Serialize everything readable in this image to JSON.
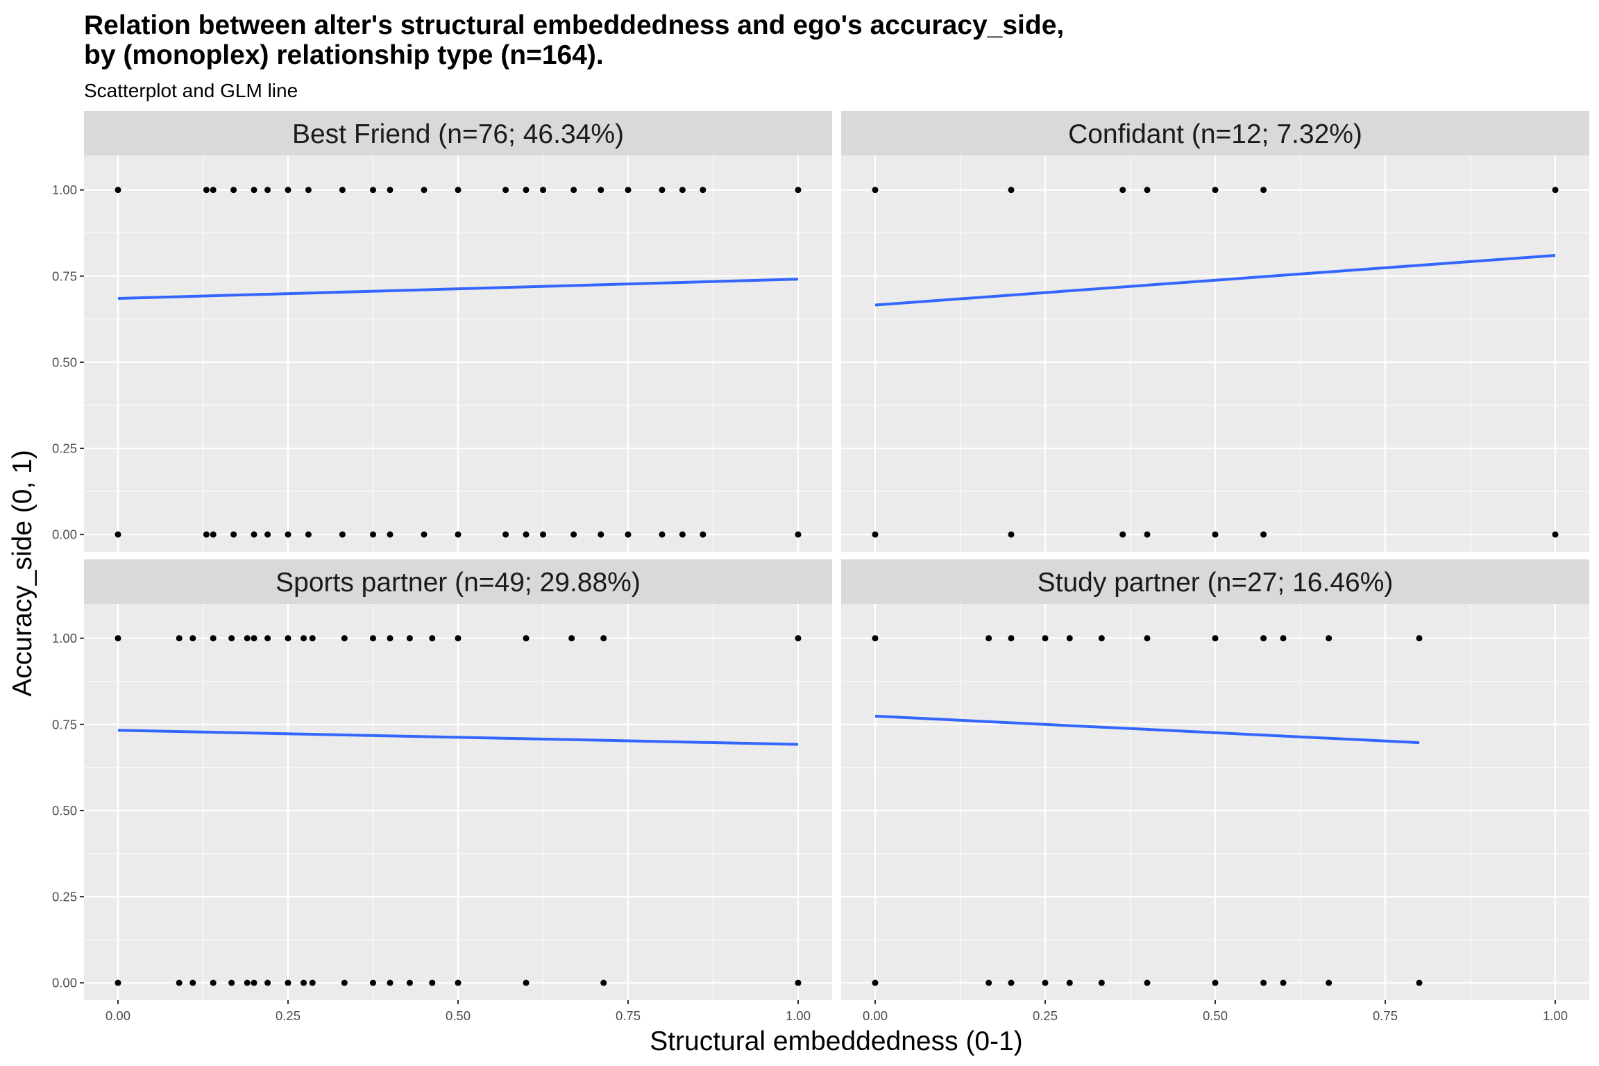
{
  "chart_data": {
    "type": "scatter",
    "title_lines": [
      "Relation between alter's structural embeddedness and ego's accuracy_side,",
      "by (monoplex) relationship type (n=164)."
    ],
    "subtitle": "Scatterplot and GLM line",
    "xlabel": "Structural embeddedness (0-1)",
    "ylabel": "Accuracy_side (0, 1)",
    "xlim": [
      -0.05,
      1.05
    ],
    "ylim": [
      -0.05,
      1.1
    ],
    "x_ticks": [
      0,
      0.25,
      0.5,
      0.75,
      1
    ],
    "x_tick_labels": [
      "0.00",
      "0.25",
      "0.50",
      "0.75",
      "1.00"
    ],
    "y_ticks": [
      0,
      0.25,
      0.5,
      0.75,
      1
    ],
    "y_tick_labels": [
      "0.00",
      "0.25",
      "0.50",
      "0.75",
      "1.00"
    ],
    "grid": true,
    "colors": {
      "panel_bg": "#ebebeb",
      "strip_bg": "#d9d9d9",
      "grid": "#ffffff",
      "point": "#000000",
      "glm_line": "#3366ff"
    },
    "panels": [
      {
        "label": "Best Friend (n=76; 46.34%)",
        "points_y1": [
          0,
          0.13,
          0.14,
          0.17,
          0.2,
          0.22,
          0.25,
          0.28,
          0.33,
          0.375,
          0.4,
          0.45,
          0.5,
          0.57,
          0.6,
          0.625,
          0.67,
          0.71,
          0.75,
          0.8,
          0.83,
          0.86,
          1
        ],
        "points_y0": [
          0,
          0.13,
          0.14,
          0.17,
          0.2,
          0.22,
          0.25,
          0.28,
          0.33,
          0.375,
          0.4,
          0.45,
          0.5,
          0.57,
          0.6,
          0.625,
          0.67,
          0.71,
          0.75,
          0.8,
          0.83,
          0.86,
          1
        ],
        "glm": {
          "x": [
            0,
            1
          ],
          "y": [
            0.685,
            0.741
          ]
        }
      },
      {
        "label": "Confidant (n=12; 7.32%)",
        "points_y1": [
          0,
          0.2,
          0.364,
          0.4,
          0.5,
          0.571,
          1
        ],
        "points_y0": [
          0,
          0.2,
          0.364,
          0.4,
          0.5,
          0.571,
          1
        ],
        "glm": {
          "x": [
            0,
            1
          ],
          "y": [
            0.666,
            0.81
          ]
        }
      },
      {
        "label": "Sports partner (n=49; 29.88%)",
        "points_y1": [
          0,
          0.09,
          0.11,
          0.14,
          0.167,
          0.19,
          0.2,
          0.22,
          0.25,
          0.273,
          0.286,
          0.333,
          0.375,
          0.4,
          0.429,
          0.462,
          0.5,
          0.6,
          0.667,
          0.714,
          1
        ],
        "points_y0": [
          0,
          0.09,
          0.11,
          0.14,
          0.167,
          0.19,
          0.2,
          0.22,
          0.25,
          0.273,
          0.286,
          0.333,
          0.375,
          0.4,
          0.429,
          0.462,
          0.5,
          0.6,
          0.714,
          1
        ],
        "glm": {
          "x": [
            0,
            1
          ],
          "y": [
            0.733,
            0.692
          ]
        }
      },
      {
        "label": "Study partner (n=27; 16.46%)",
        "points_y1": [
          0,
          0.167,
          0.2,
          0.25,
          0.286,
          0.333,
          0.4,
          0.5,
          0.571,
          0.6,
          0.667,
          0.8
        ],
        "points_y0": [
          0,
          0.167,
          0.2,
          0.25,
          0.286,
          0.333,
          0.4,
          0.5,
          0.571,
          0.6,
          0.667,
          0.8
        ],
        "glm": {
          "x": [
            0,
            0.8
          ],
          "y": [
            0.774,
            0.697
          ]
        }
      }
    ]
  }
}
